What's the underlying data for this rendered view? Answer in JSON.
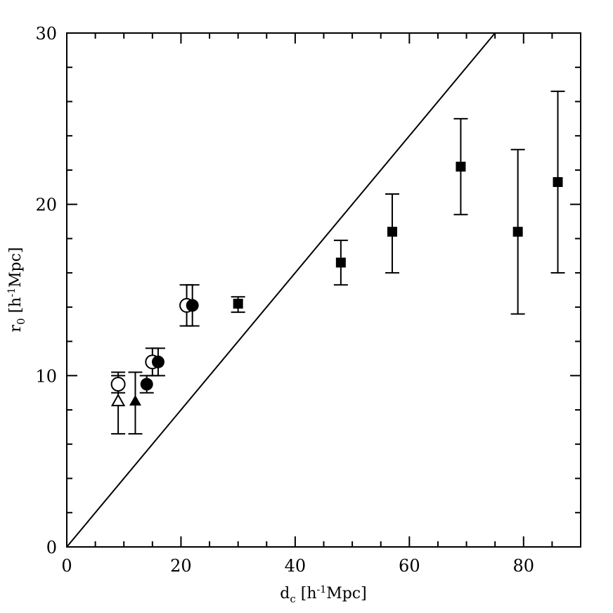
{
  "chart_data": {
    "type": "scatter",
    "title": "",
    "xlabel": "d_c [h^-1Mpc]",
    "ylabel": "r_0 [h^-1Mpc]",
    "xlim": [
      0,
      90
    ],
    "ylim": [
      0,
      30
    ],
    "x_ticks": [
      "0",
      "20",
      "40",
      "60",
      "80"
    ],
    "y_ticks": [
      "0",
      "10",
      "20",
      "30"
    ],
    "grid": false,
    "legend": "none",
    "reference_line": {
      "from": [
        0,
        0
      ],
      "to": [
        75,
        30
      ]
    },
    "series": [
      {
        "marker": "open-triangle",
        "points": [
          {
            "x": 9,
            "y": 8.5,
            "ylo": 6.6,
            "yhi": 10.2
          }
        ]
      },
      {
        "marker": "filled-triangle",
        "points": [
          {
            "x": 12,
            "y": 8.5,
            "ylo": 6.6,
            "yhi": 10.2
          }
        ]
      },
      {
        "marker": "open-circle",
        "points": [
          {
            "x": 9,
            "y": 9.5,
            "ylo": 9.0,
            "yhi": 10.0
          },
          {
            "x": 15,
            "y": 10.8,
            "ylo": 10.0,
            "yhi": 11.6
          },
          {
            "x": 21,
            "y": 14.1,
            "ylo": 12.9,
            "yhi": 15.3
          }
        ]
      },
      {
        "marker": "filled-circle",
        "points": [
          {
            "x": 14,
            "y": 9.5,
            "ylo": 9.0,
            "yhi": 10.0
          },
          {
            "x": 16,
            "y": 10.8,
            "ylo": 10.0,
            "yhi": 11.6
          },
          {
            "x": 22,
            "y": 14.1,
            "ylo": 12.9,
            "yhi": 15.3
          }
        ]
      },
      {
        "marker": "filled-square",
        "points": [
          {
            "x": 30,
            "y": 14.2,
            "ylo": 13.7,
            "yhi": 14.6
          },
          {
            "x": 48,
            "y": 16.6,
            "ylo": 15.3,
            "yhi": 17.9
          },
          {
            "x": 57,
            "y": 18.4,
            "ylo": 16.0,
            "yhi": 20.6
          },
          {
            "x": 69,
            "y": 22.2,
            "ylo": 19.4,
            "yhi": 25.0
          },
          {
            "x": 79,
            "y": 18.4,
            "ylo": 13.6,
            "yhi": 23.2
          },
          {
            "x": 86,
            "y": 21.3,
            "ylo": 16.0,
            "yhi": 26.6
          }
        ]
      }
    ]
  }
}
